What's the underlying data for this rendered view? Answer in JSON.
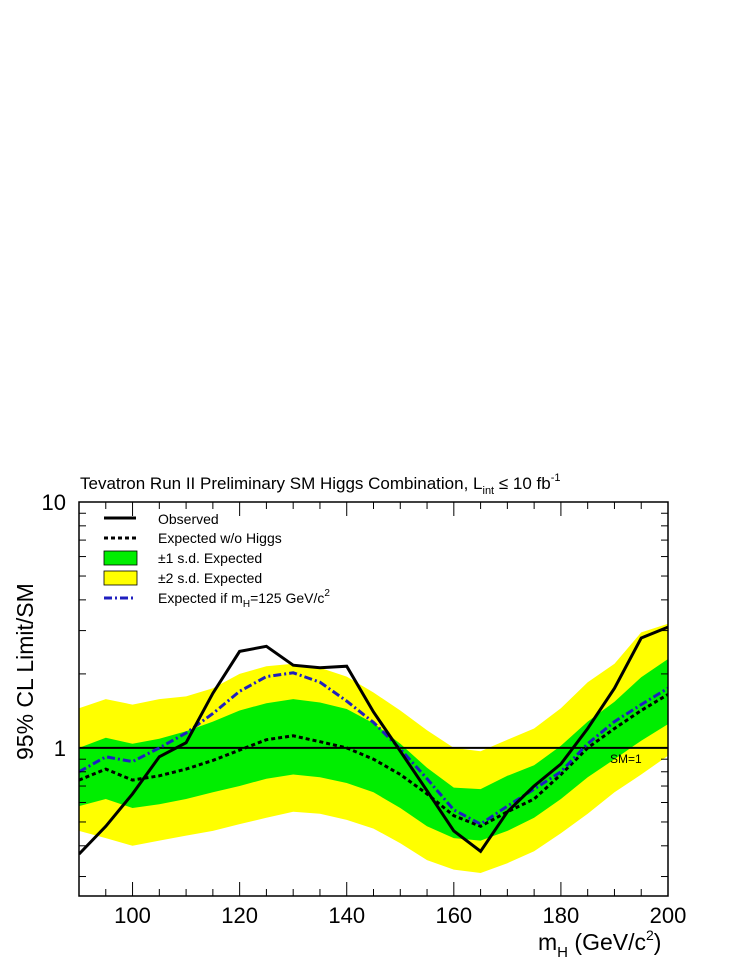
{
  "chart_data": {
    "type": "line",
    "title_main": "Tevatron Run II Preliminary SM Higgs Combination, L",
    "title_sub": "int",
    "title_rel": " ≤ 10 fb",
    "title_sup": "-1",
    "xlabel_main": "m",
    "xlabel_sub": "H",
    "xlabel_rest": " (GeV/c",
    "xlabel_sup": "2",
    "xlabel_end": ")",
    "ylabel": "95% CL Limit/SM",
    "xlim": [
      90,
      200
    ],
    "ylim": [
      0.25,
      10
    ],
    "yscale": "log",
    "x_ticks": [
      100,
      120,
      140,
      160,
      180,
      200
    ],
    "x_tick_labels": [
      "100",
      "120",
      "140",
      "160",
      "180",
      "200"
    ],
    "y_tick_labels": [
      {
        "value": 1,
        "label": "1"
      },
      {
        "value": 10,
        "label": "10"
      }
    ],
    "x": [
      90,
      95,
      100,
      105,
      110,
      115,
      120,
      125,
      130,
      135,
      140,
      145,
      150,
      155,
      160,
      165,
      170,
      175,
      180,
      185,
      190,
      195,
      200
    ],
    "band_2sd": {
      "low": [
        0.46,
        0.43,
        0.4,
        0.42,
        0.44,
        0.46,
        0.49,
        0.52,
        0.55,
        0.54,
        0.51,
        0.47,
        0.41,
        0.35,
        0.32,
        0.31,
        0.34,
        0.38,
        0.45,
        0.54,
        0.66,
        0.78,
        0.93
      ],
      "high": [
        1.45,
        1.58,
        1.5,
        1.58,
        1.62,
        1.75,
        2.0,
        2.15,
        2.2,
        2.12,
        1.95,
        1.68,
        1.42,
        1.18,
        1.0,
        0.97,
        1.08,
        1.2,
        1.45,
        1.85,
        2.2,
        2.95,
        3.2
      ]
    },
    "band_1sd": {
      "low": [
        0.58,
        0.62,
        0.57,
        0.59,
        0.62,
        0.66,
        0.7,
        0.75,
        0.78,
        0.76,
        0.72,
        0.66,
        0.57,
        0.48,
        0.43,
        0.42,
        0.46,
        0.52,
        0.62,
        0.76,
        0.9,
        1.07,
        1.25
      ],
      "high": [
        1.0,
        1.1,
        1.04,
        1.09,
        1.17,
        1.28,
        1.42,
        1.52,
        1.58,
        1.53,
        1.44,
        1.26,
        1.04,
        0.83,
        0.69,
        0.68,
        0.77,
        0.85,
        1.02,
        1.28,
        1.54,
        1.94,
        2.3
      ]
    },
    "series": [
      {
        "name": "Observed",
        "style": "solid",
        "color": "#000000",
        "values": [
          0.37,
          0.48,
          0.65,
          0.92,
          1.05,
          1.67,
          2.47,
          2.59,
          2.17,
          2.12,
          2.15,
          1.4,
          0.97,
          0.67,
          0.46,
          0.38,
          0.55,
          0.7,
          0.86,
          1.2,
          1.75,
          2.8,
          3.1
        ]
      },
      {
        "name": "Expected w/o Higgs",
        "style": "dashed",
        "color": "#000000",
        "values": [
          0.74,
          0.82,
          0.74,
          0.77,
          0.82,
          0.89,
          0.98,
          1.08,
          1.12,
          1.06,
          1.0,
          0.9,
          0.78,
          0.65,
          0.53,
          0.48,
          0.55,
          0.62,
          0.78,
          1.0,
          1.2,
          1.42,
          1.65
        ]
      },
      {
        "name": "Expected if m_H=125 GeV/c^2",
        "style": "dashdot",
        "color": "#1f1fbf",
        "values": [
          0.8,
          0.92,
          0.88,
          1.0,
          1.15,
          1.38,
          1.7,
          1.95,
          2.02,
          1.85,
          1.55,
          1.27,
          0.99,
          0.75,
          0.56,
          0.49,
          0.58,
          0.68,
          0.8,
          1.04,
          1.28,
          1.5,
          1.75
        ]
      }
    ],
    "sm_line": {
      "value": 1,
      "label": "SM=1"
    },
    "legend": {
      "placement": "top-left",
      "items": [
        {
          "label": "Observed",
          "kind": "solid",
          "color": "#000000"
        },
        {
          "label": "Expected w/o Higgs",
          "kind": "dashed",
          "color": "#000000"
        },
        {
          "label": "±1 s.d. Expected",
          "kind": "box",
          "color": "#00ee00"
        },
        {
          "label": "±2 s.d. Expected",
          "kind": "box",
          "color": "#ffff00"
        },
        {
          "label_main": "Expected if m",
          "label_sub": "H",
          "label_mid": "=125 GeV/c",
          "label_sup": "2",
          "kind": "dashdot",
          "color": "#1f1fbf"
        }
      ]
    },
    "colors": {
      "band_1sd": "#00ee00",
      "band_2sd": "#ffff00",
      "dashdot": "#1f1fbf"
    }
  }
}
